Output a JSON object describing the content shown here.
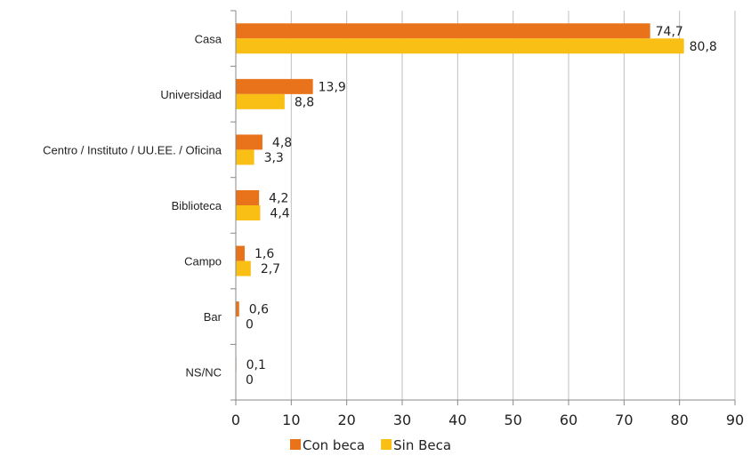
{
  "chart_data": {
    "type": "bar",
    "orientation": "horizontal",
    "categories": [
      "Casa",
      "Universidad",
      "Centro / Instituto / UU.EE. / Oficina",
      "Biblioteca",
      "Campo",
      "Bar",
      "NS/NC"
    ],
    "series": [
      {
        "name": "Con beca",
        "color": "#E8731A",
        "values": [
          74.7,
          13.9,
          4.8,
          4.2,
          1.6,
          0.6,
          0.1
        ],
        "labels": [
          "74,7",
          "13,9",
          "4,8",
          "4,2",
          "1,6",
          "0,6",
          "0,1"
        ]
      },
      {
        "name": "Sin Beca",
        "color": "#FABF14",
        "values": [
          80.8,
          8.8,
          3.3,
          4.4,
          2.7,
          0,
          0
        ],
        "labels": [
          "80,8",
          "8,8",
          "3,3",
          "4,4",
          "2,7",
          "0",
          "0"
        ]
      }
    ],
    "xlim": [
      0,
      90
    ],
    "xticks": [
      0,
      10,
      20,
      30,
      40,
      50,
      60,
      70,
      80,
      90
    ],
    "xtick_labels": [
      "0",
      "10",
      "20",
      "30",
      "40",
      "50",
      "60",
      "70",
      "80",
      "90"
    ],
    "grid": "vertical",
    "gridline_color": "#BFBFBF",
    "legend_position": "bottom"
  }
}
